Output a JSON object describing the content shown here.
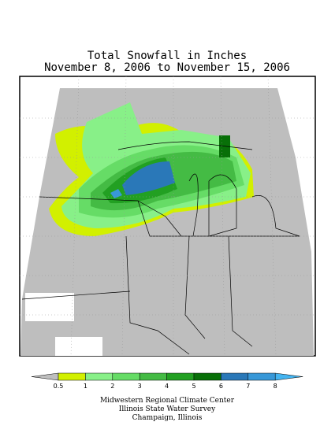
{
  "header": {
    "title_lines": [
      "Total Snowfall in Inches",
      "November 8, 2006 to November 15, 2006"
    ]
  },
  "legend": {
    "labels": [
      "0.5",
      "1",
      "2",
      "3",
      "4",
      "5",
      "6",
      "7",
      "8"
    ],
    "colors": [
      "#bebebe",
      "#d2f000",
      "#88f088",
      "#66dc66",
      "#44bb44",
      "#22a022",
      "#087008",
      "#2a78b8",
      "#3898d8",
      "#44b4f0"
    ]
  },
  "credits": [
    "Midwestern Regional Climate Center",
    "Illinois State Water Survey",
    "Champaign, Illinois"
  ]
}
